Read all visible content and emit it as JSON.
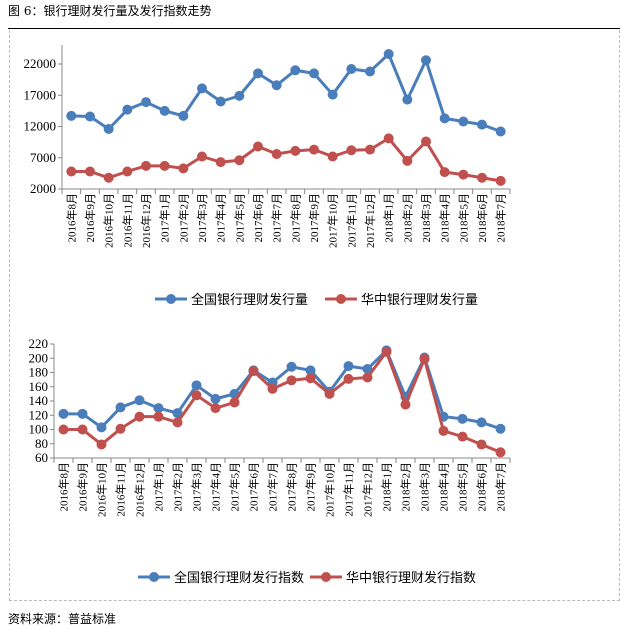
{
  "title": "图 6：银行理财发行量及发行指数走势",
  "source": "资料来源：普益标准",
  "colors": {
    "series1": "#4a7ebb",
    "series2": "#c0504d",
    "axis": "#888888"
  },
  "chart_data": [
    {
      "type": "line",
      "title": "",
      "xlabel": "",
      "ylabel": "",
      "categories": [
        "2016年8月",
        "2016年9月",
        "2016年10月",
        "2016年11月",
        "2016年12月",
        "2017年1月",
        "2017年2月",
        "2017年3月",
        "2017年4月",
        "2017年5月",
        "2017年6月",
        "2017年7月",
        "2017年8月",
        "2017年9月",
        "2017年10月",
        "2017年11月",
        "2017年12月",
        "2018年1月",
        "2018年2月",
        "2018年3月",
        "2018年4月",
        "2018年5月",
        "2018年6月",
        "2018年7月"
      ],
      "ylim": [
        2000,
        25000
      ],
      "yticks": [
        2000,
        7000,
        12000,
        17000,
        22000
      ],
      "grid": false,
      "legend": "bottom",
      "series": [
        {
          "name": "全国银行理财发行量",
          "values": [
            13700,
            13600,
            11600,
            14700,
            15900,
            14500,
            13700,
            18100,
            16000,
            16900,
            20500,
            18600,
            21000,
            20500,
            17100,
            21200,
            20800,
            23600,
            16300,
            22600,
            13300,
            12800,
            12300,
            11200
          ]
        },
        {
          "name": "华中银行理财发行量",
          "values": [
            4800,
            4800,
            3800,
            4800,
            5700,
            5700,
            5300,
            7200,
            6300,
            6600,
            8800,
            7600,
            8100,
            8300,
            7200,
            8200,
            8300,
            10100,
            6500,
            9600,
            4700,
            4300,
            3800,
            3300
          ]
        }
      ]
    },
    {
      "type": "line",
      "title": "",
      "xlabel": "",
      "ylabel": "",
      "categories": [
        "2016年8月",
        "2016年9月",
        "2016年10月",
        "2016年11月",
        "2016年12月",
        "2017年1月",
        "2017年2月",
        "2017年3月",
        "2017年4月",
        "2017年5月",
        "2017年6月",
        "2017年7月",
        "2017年8月",
        "2017年9月",
        "2017年10月",
        "2017年11月",
        "2017年12月",
        "2018年1月",
        "2018年2月",
        "2018年3月",
        "2018年4月",
        "2018年5月",
        "2018年6月",
        "2018年7月"
      ],
      "ylim": [
        60,
        220
      ],
      "yticks": [
        60,
        80,
        100,
        120,
        140,
        160,
        180,
        200,
        220
      ],
      "grid": false,
      "legend": "bottom",
      "series": [
        {
          "name": "全国银行理财发行指数",
          "values": [
            122,
            122,
            103,
            131,
            141,
            130,
            123,
            162,
            143,
            150,
            183,
            166,
            188,
            183,
            153,
            189,
            185,
            211,
            146,
            201,
            118,
            115,
            110,
            101
          ]
        },
        {
          "name": "华中银行理财发行指数",
          "values": [
            100,
            100,
            79,
            101,
            118,
            118,
            110,
            148,
            130,
            138,
            182,
            157,
            169,
            172,
            150,
            171,
            173,
            209,
            135,
            199,
            98,
            90,
            79,
            68
          ]
        }
      ]
    }
  ]
}
